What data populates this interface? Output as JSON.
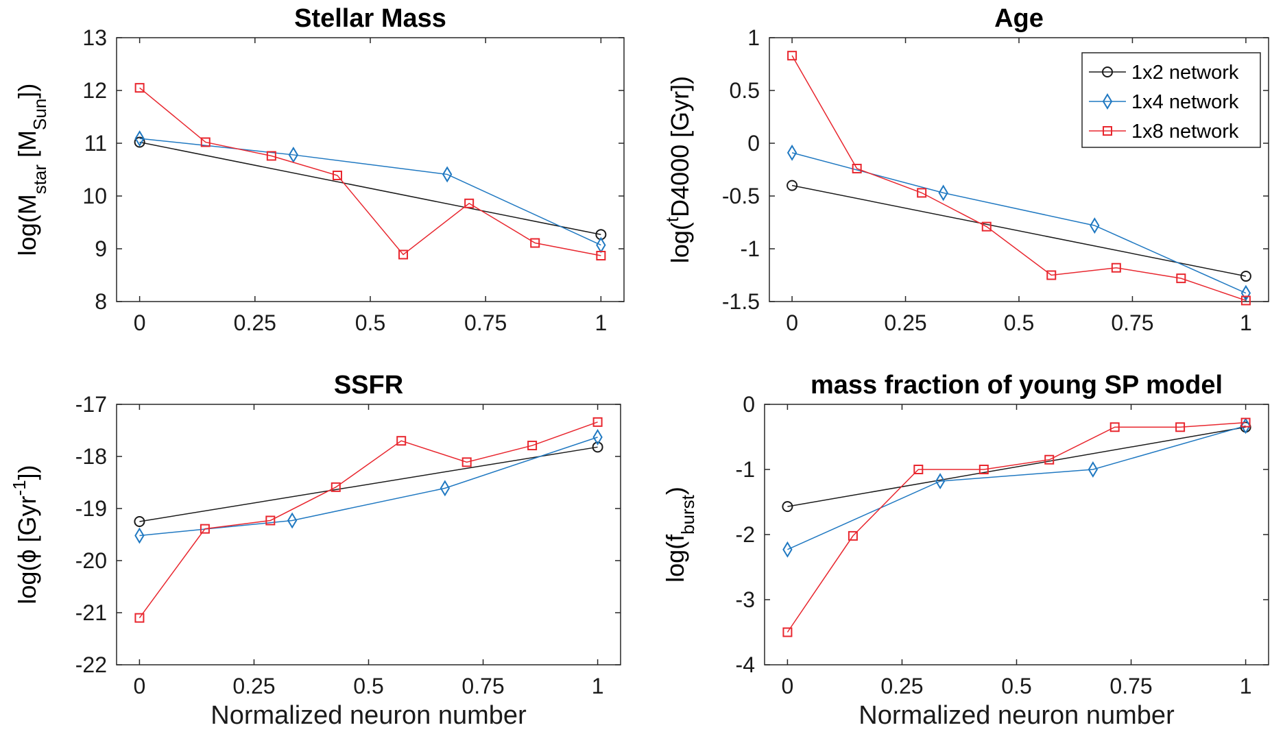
{
  "colors": {
    "1x2 network": "#1a1a1a",
    "1x4 network": "#1f78c1",
    "1x8 network": "#e8262e"
  },
  "legend": {
    "placement": "top-right",
    "panel": 1,
    "entries": [
      "1x2 network",
      "1x4 network",
      "1x8 network"
    ]
  },
  "chart_data": [
    {
      "type": "line",
      "title": "Stellar Mass",
      "ylabel": {
        "prefix": "log(M",
        "sub1": "star",
        "mid": " [M",
        "sub2": "Sun",
        "suffix": "])"
      },
      "xlabel": "",
      "xlim": [
        -0.05,
        1.05
      ],
      "ylim": [
        8,
        13
      ],
      "xticks": [
        0,
        0.25,
        0.5,
        0.75,
        1
      ],
      "xtick_labels": [
        "0",
        "0.25",
        "0.5",
        "0.75",
        "1"
      ],
      "yticks": [
        8,
        9,
        10,
        11,
        12,
        13
      ],
      "ytick_labels": [
        "8",
        "9",
        "10",
        "11",
        "12",
        "13"
      ],
      "series": [
        {
          "name": "1x2 network",
          "marker": "circle",
          "x": [
            0,
            1
          ],
          "y": [
            11.02,
            9.27
          ]
        },
        {
          "name": "1x4 network",
          "marker": "diamond",
          "x": [
            0,
            0.3333,
            0.6667,
            1
          ],
          "y": [
            11.09,
            10.78,
            10.41,
            9.07
          ]
        },
        {
          "name": "1x8 network",
          "marker": "square",
          "x": [
            0,
            0.1429,
            0.2857,
            0.4286,
            0.5714,
            0.7143,
            0.8571,
            1
          ],
          "y": [
            12.05,
            11.02,
            10.76,
            10.39,
            8.89,
            9.86,
            9.11,
            8.87
          ]
        }
      ]
    },
    {
      "type": "line",
      "title": "Age",
      "ylabel": {
        "prefix": "log(",
        "sup": "t",
        "suffix": "D4000 [Gyr])"
      },
      "xlabel": "",
      "xlim": [
        -0.05,
        1.05
      ],
      "ylim": [
        -1.5,
        1
      ],
      "xticks": [
        0,
        0.25,
        0.5,
        0.75,
        1
      ],
      "xtick_labels": [
        "0",
        "0.25",
        "0.5",
        "0.75",
        "1"
      ],
      "yticks": [
        -1.5,
        -1,
        -0.5,
        0,
        0.5,
        1
      ],
      "ytick_labels": [
        "-1.5",
        "-1",
        "-0.5",
        "0",
        "0.5",
        "1"
      ],
      "series": [
        {
          "name": "1x2 network",
          "marker": "circle",
          "x": [
            0,
            1
          ],
          "y": [
            -0.4,
            -1.26
          ]
        },
        {
          "name": "1x4 network",
          "marker": "diamond",
          "x": [
            0,
            0.3333,
            0.6667,
            1
          ],
          "y": [
            -0.09,
            -0.47,
            -0.78,
            -1.42
          ]
        },
        {
          "name": "1x8 network",
          "marker": "square",
          "x": [
            0,
            0.1429,
            0.2857,
            0.4286,
            0.5714,
            0.7143,
            0.8571,
            1
          ],
          "y": [
            0.83,
            -0.24,
            -0.47,
            -0.79,
            -1.25,
            -1.18,
            -1.28,
            -1.49
          ]
        }
      ]
    },
    {
      "type": "line",
      "title": "SSFR",
      "ylabel": {
        "prefix": "log(ϕ [Gyr",
        "sup": "-1",
        "suffix": "])"
      },
      "xlabel": "Normalized neuron number",
      "xlim": [
        -0.05,
        1.05
      ],
      "ylim": [
        -22,
        -17
      ],
      "xticks": [
        0,
        0.25,
        0.5,
        0.75,
        1
      ],
      "xtick_labels": [
        "0",
        "0.25",
        "0.5",
        "0.75",
        "1"
      ],
      "yticks": [
        -22,
        -21,
        -20,
        -19,
        -18,
        -17
      ],
      "ytick_labels": [
        "-22",
        "-21",
        "-20",
        "-19",
        "-18",
        "-17"
      ],
      "series": [
        {
          "name": "1x2 network",
          "marker": "circle",
          "x": [
            0,
            1
          ],
          "y": [
            -19.25,
            -17.82
          ]
        },
        {
          "name": "1x4 network",
          "marker": "diamond",
          "x": [
            0,
            0.3333,
            0.6667,
            1
          ],
          "y": [
            -19.52,
            -19.23,
            -18.61,
            -17.63
          ]
        },
        {
          "name": "1x8 network",
          "marker": "square",
          "x": [
            0,
            0.1429,
            0.2857,
            0.4286,
            0.5714,
            0.7143,
            0.8571,
            1
          ],
          "y": [
            -21.1,
            -19.39,
            -19.23,
            -18.59,
            -17.7,
            -18.11,
            -17.79,
            -17.34
          ]
        }
      ]
    },
    {
      "type": "line",
      "title": "mass fraction of young SP model",
      "ylabel": {
        "prefix": "log(f",
        "sub1": "burst",
        "suffix": ")"
      },
      "xlabel": "Normalized neuron number",
      "xlim": [
        -0.05,
        1.05
      ],
      "ylim": [
        -4,
        0
      ],
      "xticks": [
        0,
        0.25,
        0.5,
        0.75,
        1
      ],
      "xtick_labels": [
        "0",
        "0.25",
        "0.5",
        "0.75",
        "1"
      ],
      "yticks": [
        -4,
        -3,
        -2,
        -1,
        0
      ],
      "ytick_labels": [
        "-4",
        "-3",
        "-2",
        "-1",
        "0"
      ],
      "series": [
        {
          "name": "1x2 network",
          "marker": "circle",
          "x": [
            0,
            1
          ],
          "y": [
            -1.57,
            -0.35
          ]
        },
        {
          "name": "1x4 network",
          "marker": "diamond",
          "x": [
            0,
            0.3333,
            0.6667,
            1
          ],
          "y": [
            -2.23,
            -1.18,
            -1.0,
            -0.33
          ]
        },
        {
          "name": "1x8 network",
          "marker": "square",
          "x": [
            0,
            0.1429,
            0.2857,
            0.4286,
            0.5714,
            0.7143,
            0.8571,
            1
          ],
          "y": [
            -3.5,
            -2.02,
            -1.0,
            -1.0,
            -0.85,
            -0.35,
            -0.35,
            -0.28
          ]
        }
      ]
    }
  ]
}
